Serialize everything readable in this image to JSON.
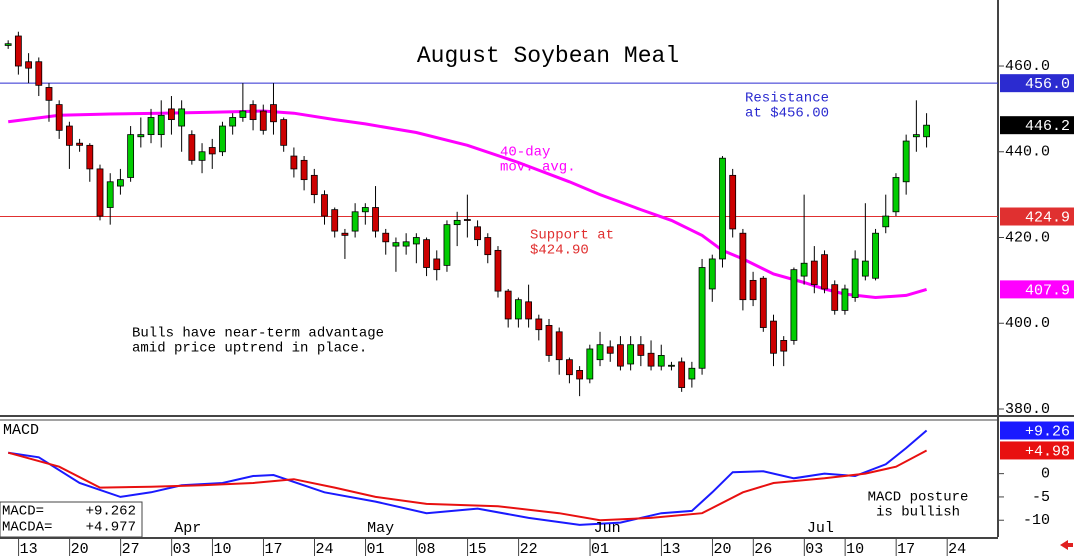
{
  "chart_data": [
    {
      "type": "candlestick",
      "title": "August Soybean Meal",
      "open": [
        464.8,
        467,
        461,
        461,
        455,
        451,
        446,
        442,
        441.5,
        436,
        427,
        432,
        434,
        443.5,
        444,
        444,
        450,
        446,
        444,
        438,
        441,
        440,
        446,
        448,
        451,
        449.5,
        451,
        447.5,
        439,
        438,
        434.5,
        430,
        426.5,
        421,
        421.5,
        426,
        427,
        421,
        418,
        418,
        418.5,
        419.5,
        415,
        413.5,
        423,
        424.2,
        422.5,
        420,
        417,
        407.5,
        401,
        405,
        401,
        399.5,
        398,
        391.5,
        389,
        387,
        391.5,
        394.5,
        395,
        390.5,
        395,
        393,
        390,
        390,
        391,
        387,
        389.5,
        408,
        415,
        434.5,
        421,
        410,
        410.5,
        400.5,
        396,
        396,
        411,
        414.5,
        416,
        409,
        403,
        406,
        411,
        410.5,
        422.5,
        426,
        433,
        443.5,
        443.5
      ],
      "high": [
        466,
        468,
        463,
        462,
        456,
        452,
        447,
        443,
        442,
        437,
        435,
        436,
        446,
        448,
        450,
        452,
        453,
        452,
        445,
        442,
        443,
        447,
        449,
        456,
        452,
        451,
        456,
        448,
        441,
        439,
        436,
        431,
        427,
        422,
        428,
        428,
        432,
        422,
        420,
        421,
        421,
        420,
        417,
        424,
        426,
        430,
        424,
        421,
        418,
        408,
        406,
        409,
        402,
        401,
        399,
        392,
        390,
        395,
        398,
        396,
        397,
        397,
        397,
        396,
        395,
        391,
        392,
        391,
        415,
        416,
        439,
        436,
        422,
        412,
        411,
        402,
        397,
        413,
        430,
        418,
        417,
        410,
        409,
        417,
        428,
        422,
        430,
        435,
        444,
        452,
        449
      ],
      "low": [
        464,
        458,
        456,
        453,
        447,
        443,
        436,
        440,
        433,
        424,
        423,
        430,
        433,
        441,
        442,
        441,
        444,
        440,
        437,
        435,
        436,
        439,
        444,
        447,
        445,
        444,
        444,
        440,
        434,
        431,
        428,
        423,
        420,
        415,
        420,
        423,
        420,
        416,
        412,
        416,
        414,
        411,
        410,
        412,
        418,
        420,
        418,
        414,
        406,
        399,
        399,
        399,
        396,
        391,
        388,
        386,
        383,
        386,
        390,
        391,
        389,
        389,
        390,
        389,
        389,
        389,
        384,
        385,
        388,
        405,
        413,
        420,
        403,
        404,
        398,
        390,
        390,
        395,
        409,
        407,
        407,
        402,
        402,
        405,
        410,
        410,
        421,
        425,
        430,
        440,
        441
      ],
      "close": [
        465.2,
        460,
        459.5,
        455.5,
        452,
        445,
        441.5,
        441.5,
        436,
        425,
        433,
        433.5,
        444,
        444,
        448,
        448.5,
        447.5,
        450,
        438,
        440,
        439.5,
        446,
        448,
        449.5,
        447.5,
        445,
        447,
        441.5,
        436,
        433.5,
        430,
        425,
        421.5,
        420.5,
        426,
        427,
        421.5,
        419,
        418.8,
        419,
        420,
        413,
        412.5,
        423,
        424,
        424,
        419.5,
        416,
        407.5,
        401,
        405.5,
        401,
        398.5,
        392.5,
        391.5,
        388,
        387,
        394,
        395,
        393,
        390,
        395,
        392.5,
        390,
        392.5,
        390.2,
        385,
        389.5,
        413,
        415,
        438.5,
        422,
        405.5,
        405.5,
        399,
        393,
        393.5,
        412.5,
        414,
        409,
        408,
        403,
        408,
        415,
        414.5,
        421,
        425,
        434,
        442.5,
        444,
        446.2
      ],
      "last_label": "446.2",
      "up_color": "#00cc00",
      "down_color": "#cc0000",
      "ma": {
        "x": [
          0,
          5,
          10,
          15,
          20,
          25,
          28,
          32,
          35,
          40,
          45,
          50,
          55,
          58,
          62,
          65,
          68,
          70,
          72,
          75,
          78,
          80,
          82,
          85,
          88,
          90
        ],
        "values": [
          447,
          448.5,
          448.8,
          449,
          449.2,
          449.5,
          449,
          447.5,
          446.5,
          444.5,
          441.5,
          437.5,
          433,
          430,
          426.5,
          424,
          420.5,
          417,
          415,
          411.5,
          409.5,
          408,
          406.8,
          406,
          406.5,
          407.9
        ],
        "color": "#ff00ff",
        "last_label": "407.9"
      },
      "levels": [
        {
          "value": 456,
          "label": "456.0",
          "color": "#2b2bd0"
        },
        {
          "value": 424.9,
          "label": "424.9",
          "color": "#e03030"
        }
      ],
      "annotations": [
        {
          "lines": [
            "Resistance",
            "at $456.00"
          ],
          "color": "#2b2bd0"
        },
        {
          "lines": [
            "40-day",
            "mov. avg."
          ],
          "color": "#ff00ff"
        },
        {
          "lines": [
            "Support at",
            "$424.90"
          ],
          "color": "#e03030"
        },
        {
          "lines": [
            "Bulls have near-term advantage",
            "amid price uptrend in place."
          ],
          "color": "#000000"
        }
      ],
      "xlim": [
        -0.8,
        97
      ],
      "ylim": [
        378.6,
        475.4
      ],
      "yticks": [
        {
          "value": 460,
          "label": "460.0"
        },
        {
          "value": 440,
          "label": "440.0"
        },
        {
          "value": 420,
          "label": "420.0"
        },
        {
          "value": 400,
          "label": "400.0"
        },
        {
          "value": 380,
          "label": "380.0"
        }
      ]
    },
    {
      "type": "line",
      "title": "MACD",
      "series": [
        {
          "name": "MACD=",
          "color": "#1a1aff",
          "x": [
            0,
            3,
            7,
            11,
            14,
            17,
            21,
            24,
            26,
            31,
            36,
            41,
            46,
            51,
            56,
            60,
            64,
            67,
            69,
            71,
            74,
            77,
            80,
            83,
            86,
            88,
            90
          ],
          "values": [
            4.5,
            3.5,
            -2,
            -5,
            -4,
            -2.5,
            -2,
            -0.5,
            -0.3,
            -4,
            -6,
            -8.5,
            -7.5,
            -9.5,
            -11,
            -10.5,
            -8.5,
            -8,
            -4,
            0.3,
            0.5,
            -1,
            0,
            -0.5,
            2,
            5.5,
            9.262
          ],
          "tag_label": "+9.26",
          "box_label": "+9.262"
        },
        {
          "name": "MACDA=",
          "color": "#e81010",
          "x": [
            0,
            5,
            9,
            14,
            19,
            24,
            28,
            32,
            36,
            41,
            48,
            54,
            58,
            63,
            68,
            72,
            75,
            80,
            84,
            87,
            90
          ],
          "values": [
            4.5,
            1.5,
            -3,
            -2.8,
            -2.5,
            -2,
            -1.2,
            -3,
            -5,
            -6.5,
            -7,
            -8.5,
            -10,
            -9.5,
            -8.5,
            -4,
            -2,
            -1,
            0,
            1.5,
            4.977
          ],
          "tag_label": "+4.98",
          "box_label": "+4.977"
        }
      ],
      "annotation": [
        "MACD posture",
        "is bullish"
      ],
      "xlim": [
        -0.8,
        97
      ],
      "ylim": [
        -13.6,
        11.3
      ],
      "yticks": [
        0,
        -5,
        -10
      ],
      "xticks": [
        {
          "value": 2,
          "label": "13"
        },
        {
          "value": 7,
          "label": "20"
        },
        {
          "value": 12,
          "label": "27"
        },
        {
          "value": 17,
          "label": "03"
        },
        {
          "value": 21,
          "label": "10"
        },
        {
          "value": 26,
          "label": "17"
        },
        {
          "value": 31,
          "label": "24"
        },
        {
          "value": 36,
          "label": "01"
        },
        {
          "value": 41,
          "label": "08"
        },
        {
          "value": 46,
          "label": "15"
        },
        {
          "value": 51,
          "label": "22"
        },
        {
          "value": 58,
          "label": "01"
        },
        {
          "value": 65,
          "label": "13"
        },
        {
          "value": 70,
          "label": "20"
        },
        {
          "value": 74,
          "label": "26"
        },
        {
          "value": 79,
          "label": "03"
        },
        {
          "value": 83,
          "label": "10"
        },
        {
          "value": 88,
          "label": "17"
        },
        {
          "value": 93,
          "label": "24"
        }
      ],
      "month_ticks": [
        {
          "value": 17.6,
          "label": "Apr"
        },
        {
          "value": 36.5,
          "label": "May"
        },
        {
          "value": 58.7,
          "label": "Jun"
        },
        {
          "value": 79.6,
          "label": "Jul"
        }
      ]
    }
  ]
}
